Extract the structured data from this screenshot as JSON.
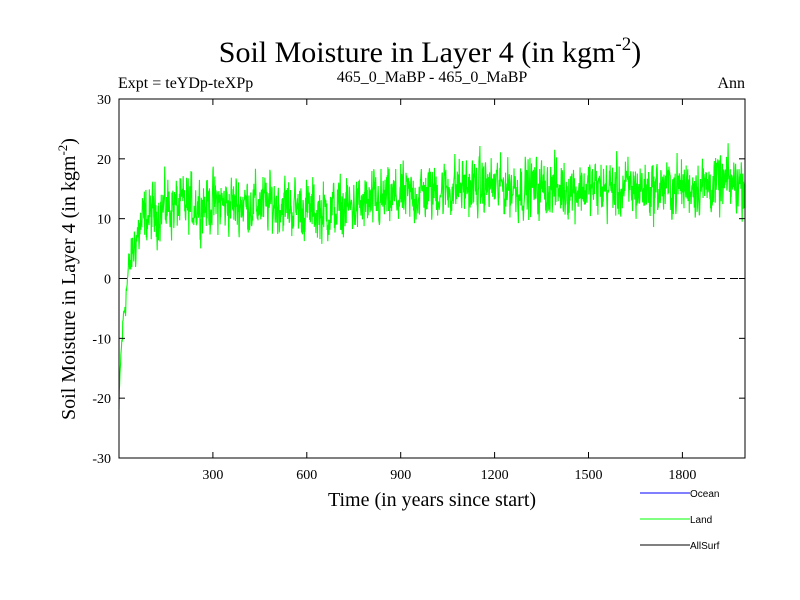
{
  "chart_data": {
    "type": "line",
    "title": "Soil Moisture in Layer 4 (in kgm",
    "title_superscript": "-2",
    "title_close": ")",
    "subtitle_left": "Expt = teYDp-teXPp",
    "subtitle_center": "465_0_MaBP - 465_0_MaBP",
    "subtitle_right": "Ann",
    "xlabel": "Time (in years since start)",
    "ylabel": "Soil Moisture in Layer 4 (in kgm",
    "ylabel_superscript": "-2",
    "ylabel_close": ")",
    "xlim": [
      0,
      2000
    ],
    "ylim": [
      -30,
      30
    ],
    "xticks": [
      300,
      600,
      900,
      1200,
      1500,
      1800
    ],
    "xtick_labels": [
      "300",
      "600",
      "900",
      "1200",
      "1500",
      "1800"
    ],
    "yticks": [
      -30,
      -20,
      -10,
      0,
      10,
      20,
      30
    ],
    "ytick_labels": [
      "-30",
      "-20",
      "-10",
      "0",
      "10",
      "20",
      "30"
    ],
    "reference_line": 0,
    "series": [
      {
        "name": "Ocean",
        "color": "#0000ff",
        "values": []
      },
      {
        "name": "Land",
        "color": "#00ff00",
        "noise_amplitude": 3.5,
        "trend_points": [
          {
            "x": 0,
            "y": -22
          },
          {
            "x": 5,
            "y": -14
          },
          {
            "x": 15,
            "y": -6
          },
          {
            "x": 30,
            "y": 1
          },
          {
            "x": 50,
            "y": 6
          },
          {
            "x": 80,
            "y": 10
          },
          {
            "x": 150,
            "y": 12
          },
          {
            "x": 300,
            "y": 12.5
          },
          {
            "x": 500,
            "y": 12.5
          },
          {
            "x": 650,
            "y": 11
          },
          {
            "x": 900,
            "y": 13.5
          },
          {
            "x": 1100,
            "y": 15.5
          },
          {
            "x": 1400,
            "y": 15
          },
          {
            "x": 1700,
            "y": 15
          },
          {
            "x": 2000,
            "y": 16
          }
        ]
      },
      {
        "name": "AllSurf",
        "color": "#000000",
        "values": []
      }
    ]
  }
}
